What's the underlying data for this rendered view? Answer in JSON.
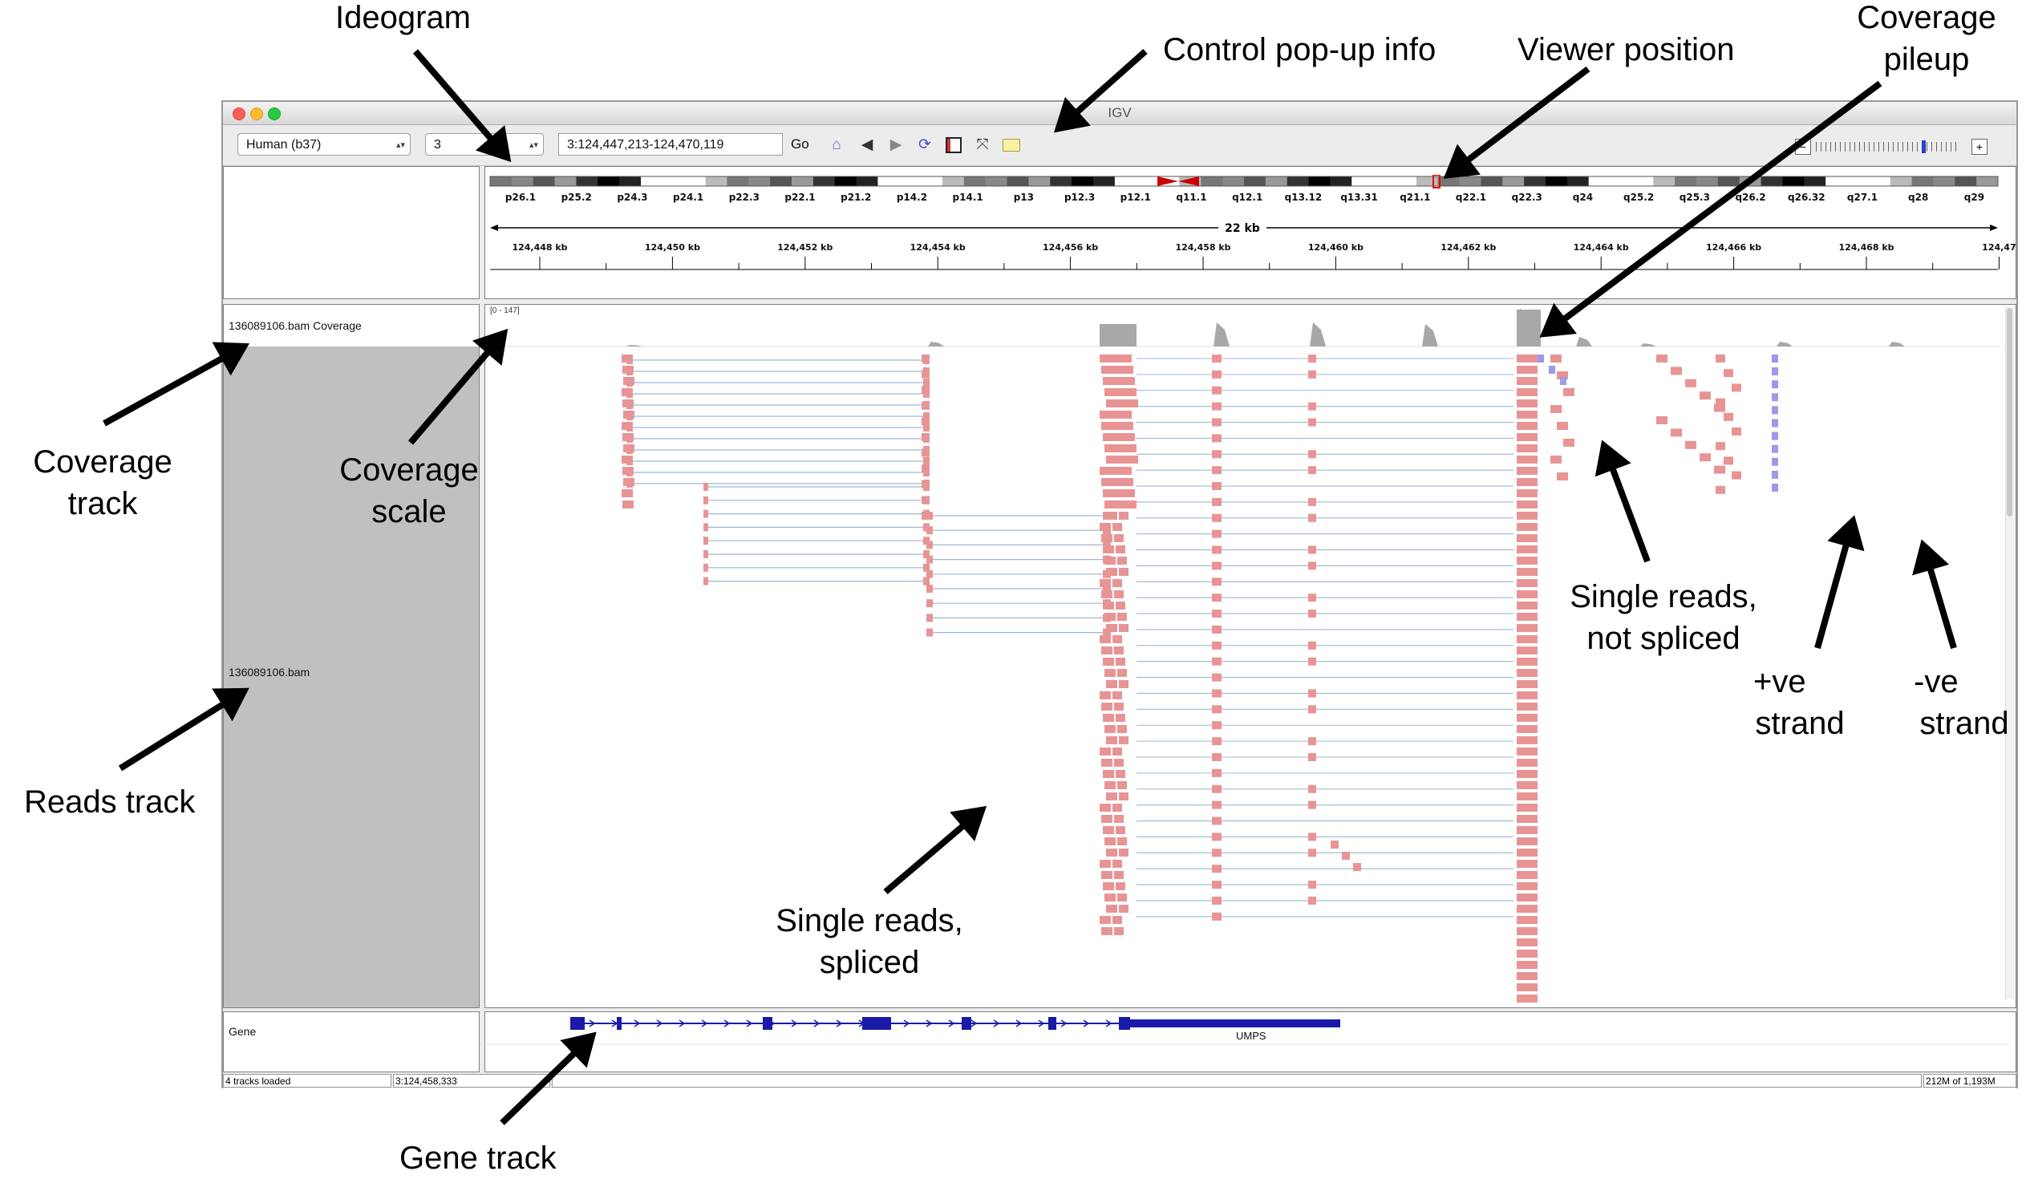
{
  "window": {
    "title": "IGV"
  },
  "toolbar": {
    "genome": "Human (b37)",
    "chromosome": "3",
    "locus": "3:124,447,213-124,470,119",
    "go_label": "Go"
  },
  "ideogram": {
    "bands": [
      "p26.1",
      "p25.2",
      "p24.3",
      "p24.1",
      "p22.3",
      "p22.1",
      "p21.2",
      "p14.2",
      "p14.1",
      "p13",
      "p12.3",
      "p12.1",
      "q11.1",
      "q12.1",
      "q13.12",
      "q13.31",
      "q21.1",
      "q22.1",
      "q22.3",
      "q24",
      "q25.2",
      "q25.3",
      "q26.2",
      "q26.32",
      "q27.1",
      "q28",
      "q29"
    ]
  },
  "ruler": {
    "span": "22 kb",
    "ticks": [
      "124,448 kb",
      "124,450 kb",
      "124,452 kb",
      "124,454 kb",
      "124,456 kb",
      "124,458 kb",
      "124,460 kb",
      "124,462 kb",
      "124,464 kb",
      "124,466 kb",
      "124,468 kb",
      "124,47"
    ]
  },
  "tracks": {
    "coverage_name": "136089106.bam Coverage",
    "coverage_scale": "[0 - 147]",
    "reads_name": "136089106.bam",
    "gene_name": "Gene",
    "gene_label": "UMPS"
  },
  "status": {
    "tracks_loaded": "4 tracks loaded",
    "position": "3:124,458,333",
    "memory": "212M of 1,193M"
  },
  "annotations": {
    "ideogram": "Ideogram",
    "control_popup": "Control pop-up info",
    "viewer_position": "Viewer position",
    "coverage_pileup": [
      "Coverage",
      "pileup"
    ],
    "coverage_track": [
      "Coverage",
      "track"
    ],
    "coverage_scale": [
      "Coverage",
      "scale"
    ],
    "reads_track": "Reads track",
    "single_not_spliced": [
      "Single reads,",
      "not spliced"
    ],
    "plus_strand": [
      "+ve",
      "strand"
    ],
    "minus_strand": [
      "-ve",
      "strand"
    ],
    "single_spliced": [
      "Single reads,",
      "spliced"
    ],
    "gene_track": "Gene track"
  },
  "colors": {
    "read_plus": "#e89494",
    "read_minus": "#9b9be8",
    "gene": "#1a1aa8",
    "coverage": "#a8a8a8"
  }
}
